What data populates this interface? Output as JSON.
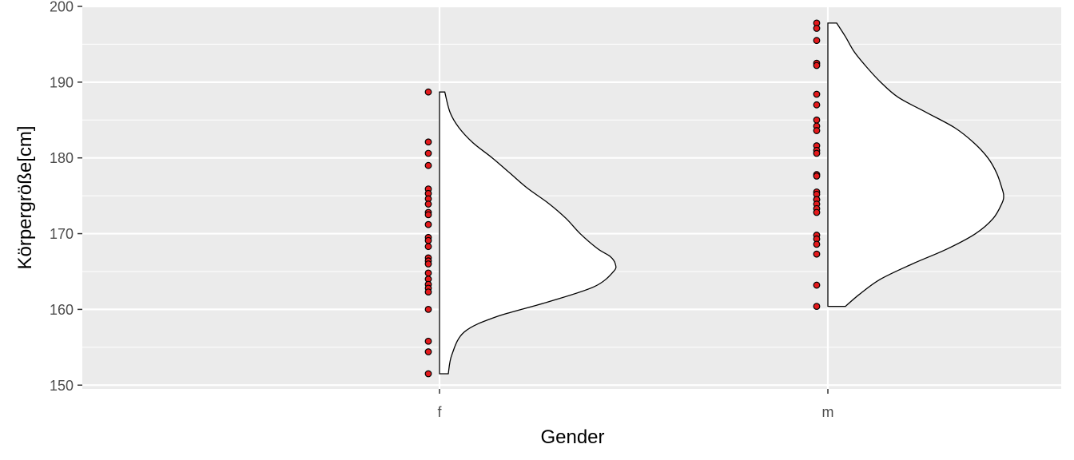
{
  "chart_data": {
    "type": "scatter",
    "title": "",
    "xlabel": "Gender",
    "ylabel": "Körpergröße[cm]",
    "categories": [
      "f",
      "m"
    ],
    "ylim": [
      149.5,
      200
    ],
    "yticks": [
      150,
      160,
      170,
      180,
      190,
      200
    ],
    "grid": true,
    "legend": "none",
    "colors": {
      "panel": "#ebebeb",
      "grid": "#ffffff",
      "point_fill": "#e41a1c",
      "point_stroke": "#000000",
      "violin_fill": "#ffffff",
      "violin_stroke": "#000000"
    },
    "series": [
      {
        "category": "f",
        "points": [
          188.7,
          182.1,
          180.6,
          179.0,
          175.9,
          175.3,
          174.6,
          173.9,
          172.8,
          172.5,
          171.2,
          169.5,
          169.1,
          168.3,
          166.8,
          166.4,
          166.0,
          164.8,
          164.0,
          163.3,
          162.8,
          162.3,
          160.0,
          155.8,
          154.4,
          151.5
        ],
        "density": {
          "y": [
            151.5,
            154,
            157,
            159,
            161,
            163,
            165,
            166,
            167,
            168,
            170,
            172,
            174,
            176,
            178,
            180,
            182,
            184,
            186,
            188.7
          ],
          "width": [
            0.05,
            0.07,
            0.14,
            0.32,
            0.62,
            0.88,
            0.99,
            1.0,
            0.97,
            0.9,
            0.8,
            0.72,
            0.62,
            0.5,
            0.4,
            0.3,
            0.19,
            0.11,
            0.06,
            0.03
          ]
        }
      },
      {
        "category": "m",
        "points": [
          197.8,
          197.1,
          195.5,
          192.5,
          192.2,
          188.4,
          187.0,
          185.0,
          184.2,
          183.6,
          181.6,
          181.0,
          180.6,
          177.8,
          177.6,
          175.5,
          175.2,
          174.5,
          174.5,
          173.9,
          173.3,
          172.8,
          169.8,
          169.3,
          168.6,
          167.3,
          163.2,
          160.4
        ],
        "density": {
          "y": [
            160.4,
            162,
            164,
            166,
            168,
            170,
            172,
            174,
            175,
            176,
            178,
            180,
            182,
            184,
            186,
            188,
            190,
            192,
            194,
            196,
            197.8
          ],
          "width": [
            0.1,
            0.18,
            0.3,
            0.48,
            0.68,
            0.84,
            0.94,
            0.99,
            1.0,
            0.99,
            0.96,
            0.91,
            0.83,
            0.72,
            0.56,
            0.4,
            0.3,
            0.22,
            0.15,
            0.1,
            0.05
          ]
        }
      }
    ]
  }
}
